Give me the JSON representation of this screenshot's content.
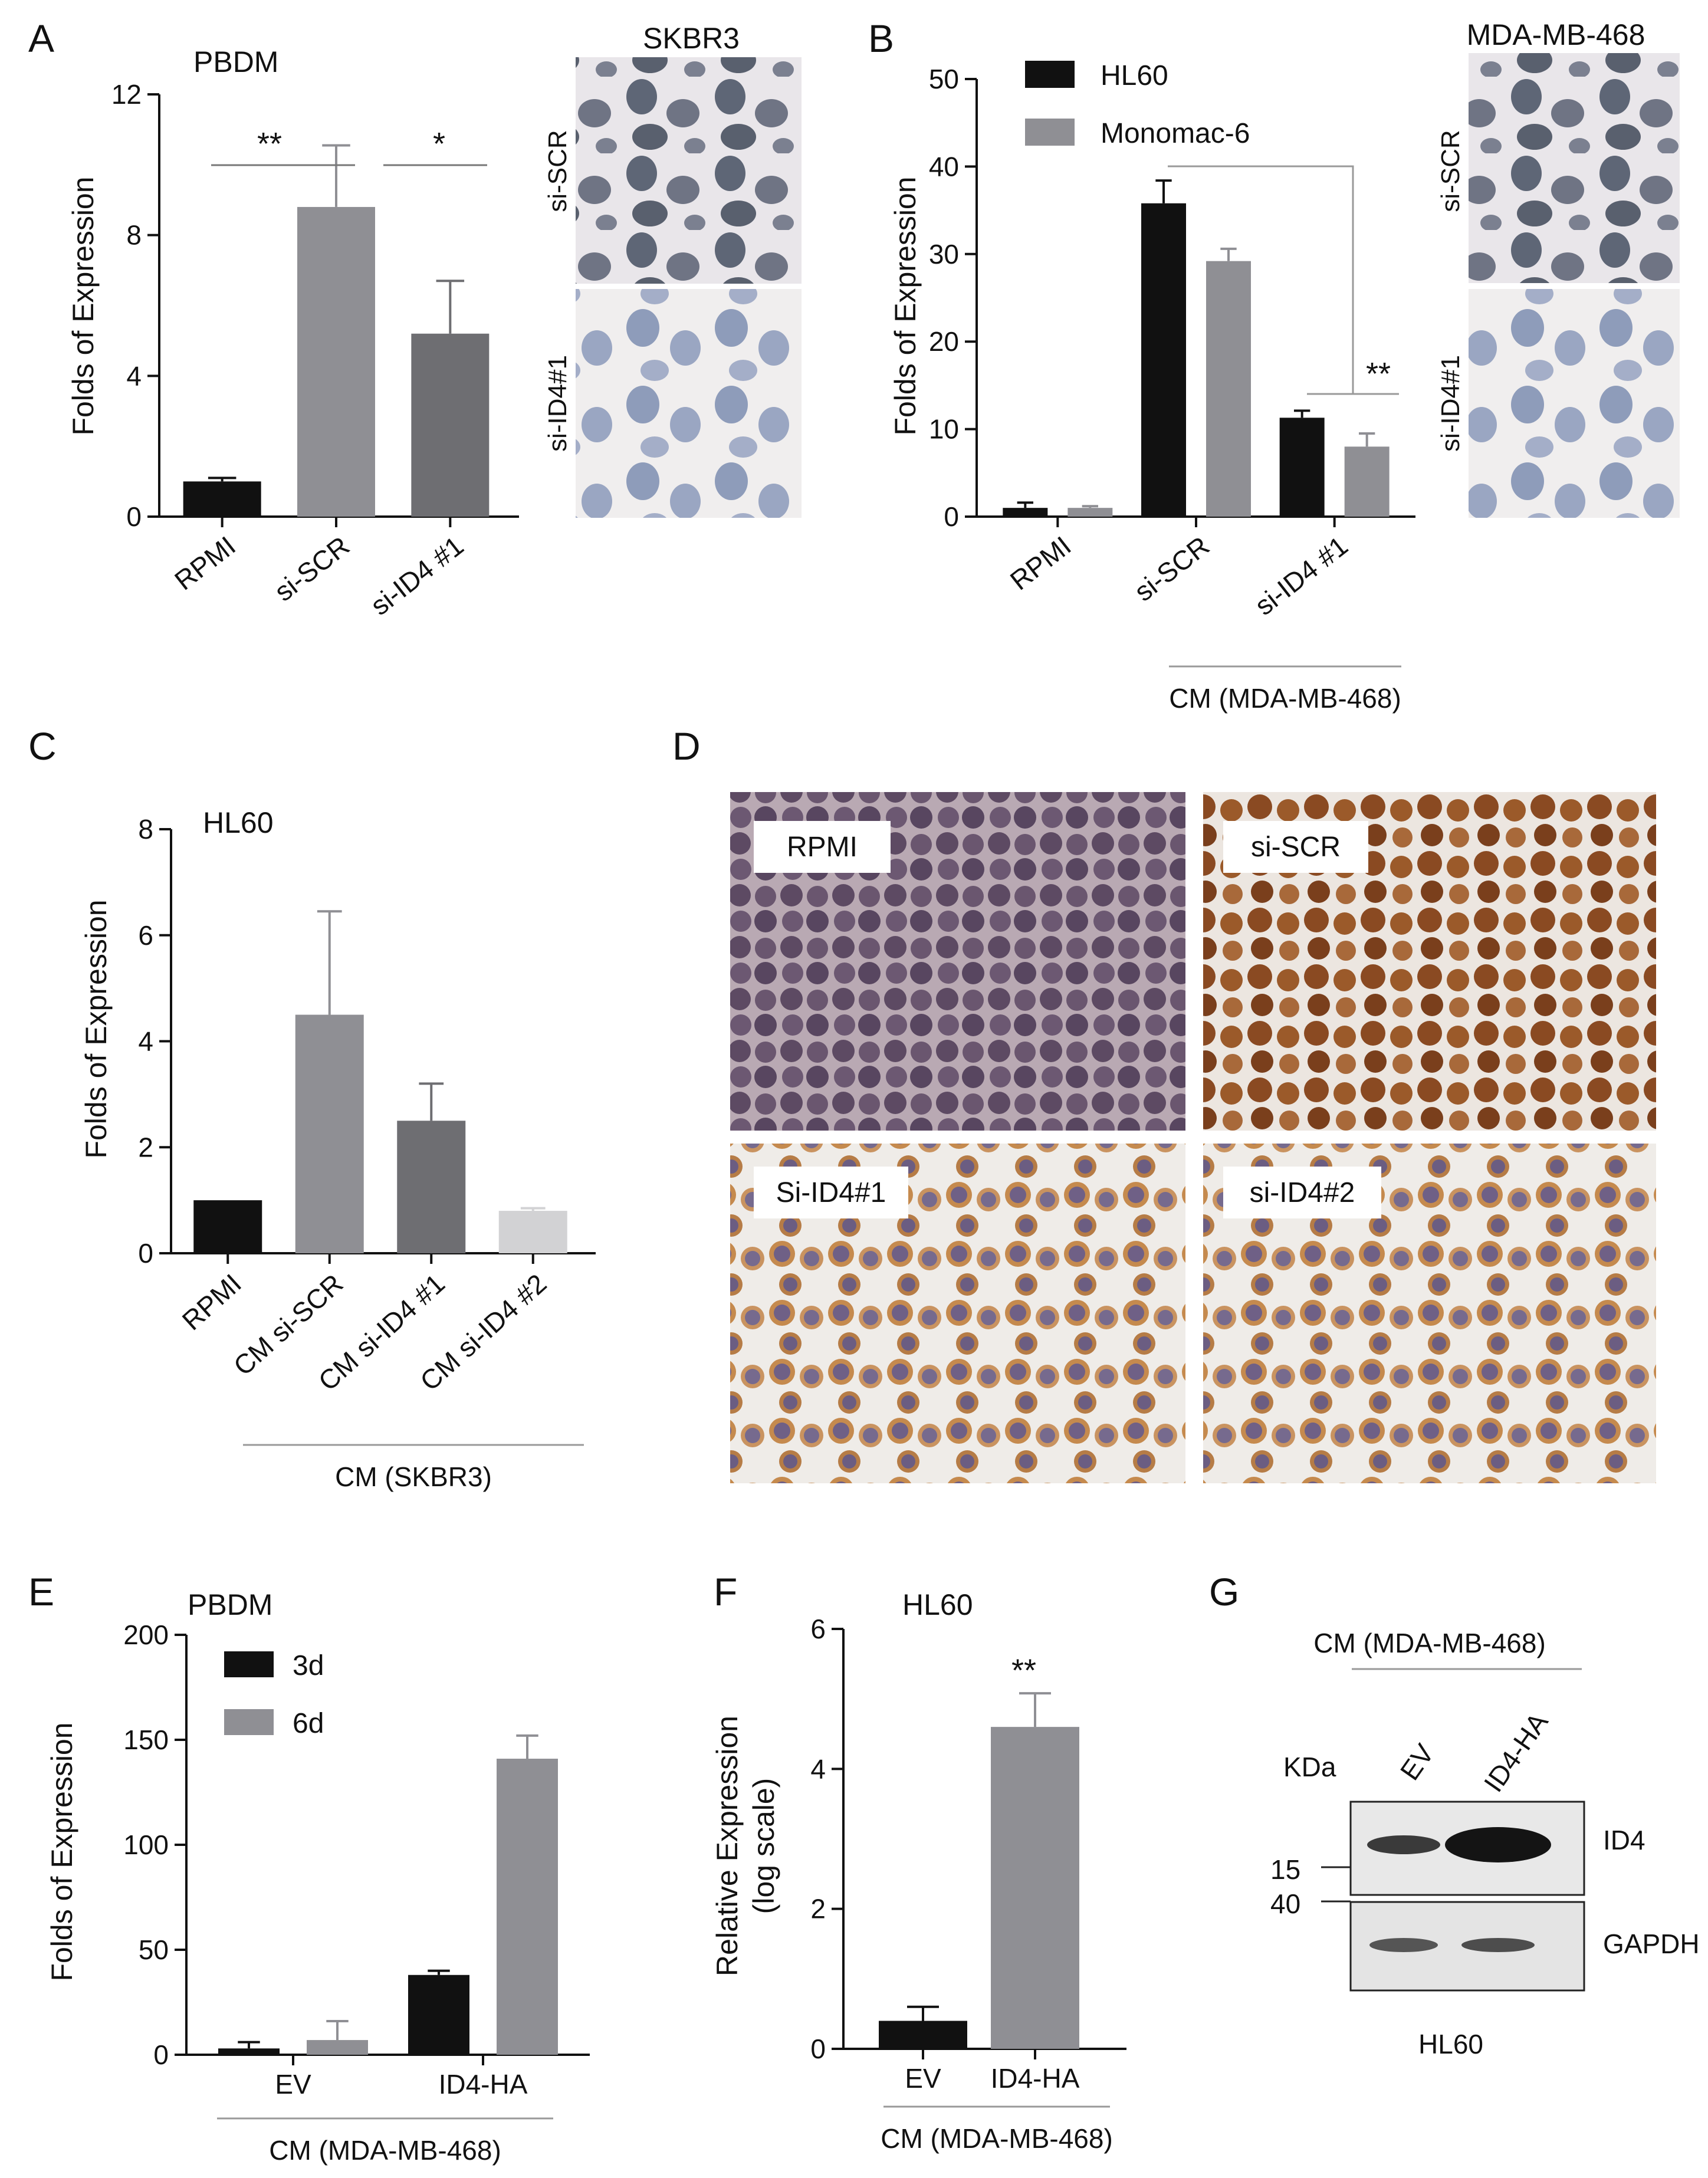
{
  "colors": {
    "black": "#111111",
    "gray": "#8f8f94",
    "darkgray": "#6e6e72",
    "lightgray": "#d2d2d4"
  },
  "A": {
    "letter": "A",
    "chart_data": {
      "type": "bar",
      "title": "PBDM",
      "xlabel": "",
      "ylabel": "Folds of Expression",
      "ylim": [
        0,
        12
      ],
      "yticks": [
        0,
        4,
        8,
        12
      ],
      "categories": [
        "RPMI",
        "si-SCR",
        "si-ID4 #1"
      ],
      "values": [
        1.0,
        8.8,
        5.2
      ],
      "errors": [
        0.1,
        1.75,
        1.5
      ],
      "colors": [
        "#111111",
        "#8f8f94",
        "#6e6e72"
      ],
      "significance": [
        "**",
        "*"
      ]
    },
    "micro_title": "SKBR3",
    "micro_labels": [
      "si-SCR",
      "si-ID4#1"
    ]
  },
  "B": {
    "letter": "B",
    "chart_data": {
      "type": "bar",
      "title": "",
      "xlabel": "",
      "ylabel": "Folds of Expression",
      "ylim": [
        0,
        50
      ],
      "yticks": [
        0,
        10,
        20,
        30,
        40,
        50
      ],
      "categories": [
        "RPMI",
        "si-SCR",
        "si-ID4 #1"
      ],
      "series": [
        {
          "name": "HL60",
          "values": [
            1.0,
            35.8,
            11.3
          ],
          "errors": [
            0.6,
            2.6,
            0.8
          ],
          "color": "#111111"
        },
        {
          "name": "Monomac-6",
          "values": [
            1.0,
            29.2,
            8.0
          ],
          "errors": [
            0.2,
            1.4,
            1.5
          ],
          "color": "#8f8f94"
        }
      ],
      "significance": [
        "**"
      ],
      "group_label": "CM (MDA-MB-468)"
    },
    "micro_title": "MDA-MB-468",
    "micro_labels": [
      "si-SCR",
      "si-ID4#1"
    ]
  },
  "C": {
    "letter": "C",
    "chart_data": {
      "type": "bar",
      "title": "HL60",
      "xlabel": "",
      "ylabel": "Folds of Expression",
      "ylim": [
        0,
        8
      ],
      "yticks": [
        0,
        2,
        4,
        6,
        8
      ],
      "categories": [
        "RPMI",
        "CM si-SCR",
        "CM si-ID4 #1",
        "CM si-ID4 #2"
      ],
      "values": [
        1.0,
        4.5,
        2.5,
        0.8
      ],
      "errors": [
        0.0,
        1.95,
        0.7,
        0.05
      ],
      "colors": [
        "#111111",
        "#8f8f94",
        "#6e6e72",
        "#d2d2d4"
      ],
      "group_label": "CM (SKBR3)"
    }
  },
  "D": {
    "letter": "D",
    "panel_labels": [
      "RPMI",
      "si-SCR",
      "Si-ID4#1",
      "si-ID4#2"
    ]
  },
  "E": {
    "letter": "E",
    "chart_data": {
      "type": "bar",
      "title": "PBDM",
      "xlabel": "",
      "ylabel": "Folds of Expression",
      "ylim": [
        0,
        200
      ],
      "yticks": [
        0,
        50,
        100,
        150,
        200
      ],
      "categories": [
        "EV",
        "ID4-HA"
      ],
      "series": [
        {
          "name": "3d",
          "values": [
            3,
            38
          ],
          "errors": [
            3,
            2
          ],
          "color": "#111111"
        },
        {
          "name": "6d",
          "values": [
            7,
            141
          ],
          "errors": [
            9,
            11
          ],
          "color": "#8f8f94"
        }
      ],
      "group_label": "CM (MDA-MB-468)"
    }
  },
  "F": {
    "letter": "F",
    "chart_data": {
      "type": "bar",
      "title": "HL60",
      "xlabel": "",
      "ylabel": "Relative Expression (log scale)",
      "ylabel_lines": [
        "Relative Expression",
        "(log scale)"
      ],
      "ylim": [
        0,
        6
      ],
      "yticks": [
        0,
        2,
        4,
        6
      ],
      "categories": [
        "EV",
        "ID4-HA"
      ],
      "values": [
        0.4,
        4.6
      ],
      "errors": [
        0.2,
        0.48
      ],
      "colors": [
        "#111111",
        "#8f8f94"
      ],
      "significance": [
        "**"
      ],
      "group_label": "CM (MDA-MB-468)"
    }
  },
  "G": {
    "letter": "G",
    "group_label": "CM (MDA-MB-468)",
    "kda_label": "KDa",
    "lanes": [
      "EV",
      "ID4-HA"
    ],
    "markers": [
      "15",
      "40"
    ],
    "bands": [
      "ID4",
      "GAPDH"
    ],
    "cell_line": "HL60"
  }
}
